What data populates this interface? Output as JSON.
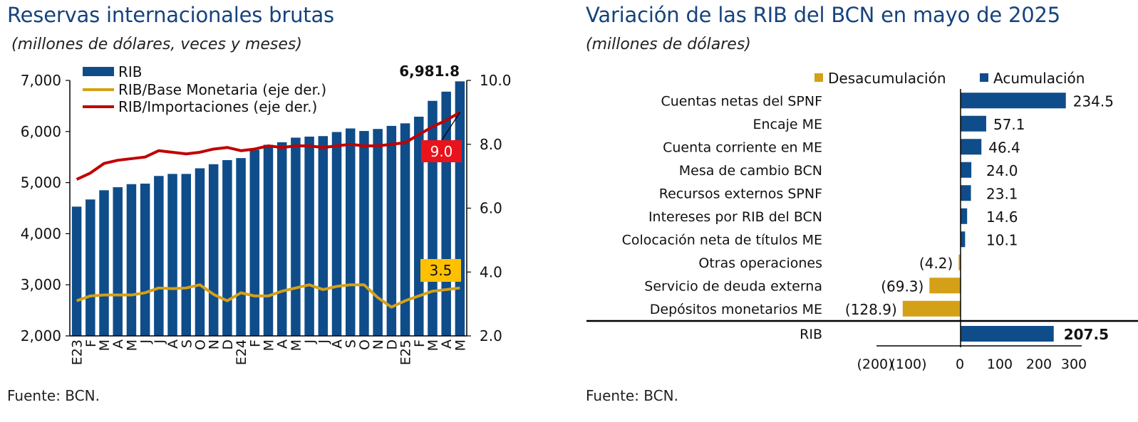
{
  "left": {
    "title": "Reservas internacionales brutas",
    "subtitle": "(millones de dólares, veces y meses)",
    "source": "Fuente: BCN.",
    "chart_data": {
      "type": "bar",
      "categories": [
        "E23",
        "F",
        "M",
        "A",
        "M",
        "J",
        "J",
        "A",
        "S",
        "O",
        "N",
        "D",
        "E24",
        "F",
        "M",
        "A",
        "M",
        "J",
        "J",
        "A",
        "S",
        "O",
        "N",
        "D",
        "E25",
        "F",
        "M",
        "A",
        "M"
      ],
      "series": [
        {
          "name": "RIB",
          "type": "bar",
          "axis": "left",
          "color": "#0F4C8A",
          "values": [
            4530,
            4670,
            4850,
            4910,
            4970,
            4980,
            5130,
            5170,
            5170,
            5280,
            5360,
            5440,
            5480,
            5640,
            5740,
            5790,
            5880,
            5900,
            5910,
            5990,
            6060,
            6010,
            6050,
            6110,
            6160,
            6290,
            6600,
            6780,
            6981.8
          ]
        },
        {
          "name": "RIB/Base Monetaria (eje der.)",
          "type": "line",
          "axis": "right",
          "color": "#D4A017",
          "values": [
            3.1,
            3.25,
            3.28,
            3.28,
            3.28,
            3.35,
            3.5,
            3.48,
            3.5,
            3.6,
            3.3,
            3.1,
            3.35,
            3.25,
            3.25,
            3.4,
            3.5,
            3.6,
            3.45,
            3.55,
            3.6,
            3.6,
            3.2,
            2.9,
            3.1,
            3.25,
            3.4,
            3.45,
            3.5
          ]
        },
        {
          "name": "RIB/Importaciones (eje der.)",
          "type": "line",
          "axis": "right",
          "color": "#C00000",
          "values": [
            6.9,
            7.1,
            7.4,
            7.5,
            7.55,
            7.6,
            7.8,
            7.75,
            7.7,
            7.75,
            7.85,
            7.9,
            7.8,
            7.85,
            7.95,
            7.9,
            7.95,
            7.95,
            7.9,
            7.95,
            8.0,
            7.95,
            7.95,
            8.0,
            8.05,
            8.3,
            8.55,
            8.75,
            9.0
          ]
        }
      ],
      "ylim": [
        2000,
        7000
      ],
      "yticks": [
        "2,000",
        "3,000",
        "4,000",
        "5,000",
        "6,000",
        "7,000"
      ],
      "y2lim": [
        2.0,
        10.0
      ],
      "y2ticks": [
        "2.0",
        "4.0",
        "6.0",
        "8.0",
        "10.0"
      ],
      "annotations": {
        "rib_last": "6,981.8",
        "imports_last": "9.0",
        "base_last": "3.5"
      },
      "legend": "top-left"
    }
  },
  "right": {
    "title": "Variación de las RIB del BCN en mayo de 2025",
    "subtitle": "(millones de dólares)",
    "source": "Fuente: BCN.",
    "chart_data": {
      "type": "bar",
      "orientation": "horizontal",
      "legend": [
        "Desacumulación",
        "Acumulación"
      ],
      "colors": {
        "positive": "#0F4C8A",
        "negative": "#D4A017"
      },
      "items": [
        {
          "label": "Cuentas netas del SPNF",
          "value": 234.5,
          "display": "234.5"
        },
        {
          "label": "Encaje ME",
          "value": 57.1,
          "display": "57.1"
        },
        {
          "label": "Cuenta corriente en ME",
          "value": 46.4,
          "display": "46.4"
        },
        {
          "label": "Mesa de cambio BCN",
          "value": 24.0,
          "display": "24.0"
        },
        {
          "label": "Recursos externos SPNF",
          "value": 23.1,
          "display": "23.1"
        },
        {
          "label": "Intereses por RIB del BCN",
          "value": 14.6,
          "display": "14.6"
        },
        {
          "label": "Colocación neta de títulos ME",
          "value": 10.1,
          "display": "10.1"
        },
        {
          "label": "Otras operaciones",
          "value": -4.2,
          "display": "(4.2)"
        },
        {
          "label": "Servicio de deuda externa",
          "value": -69.3,
          "display": "(69.3)"
        },
        {
          "label": "Depósitos monetarios ME",
          "value": -128.9,
          "display": "(128.9)"
        }
      ],
      "total": {
        "label": "RIB",
        "value": 207.5,
        "display": "207.5"
      },
      "xlim": [
        -200,
        300
      ],
      "xticks": [
        "(200)",
        "(100)",
        "0",
        "100",
        "200",
        "300"
      ]
    }
  }
}
